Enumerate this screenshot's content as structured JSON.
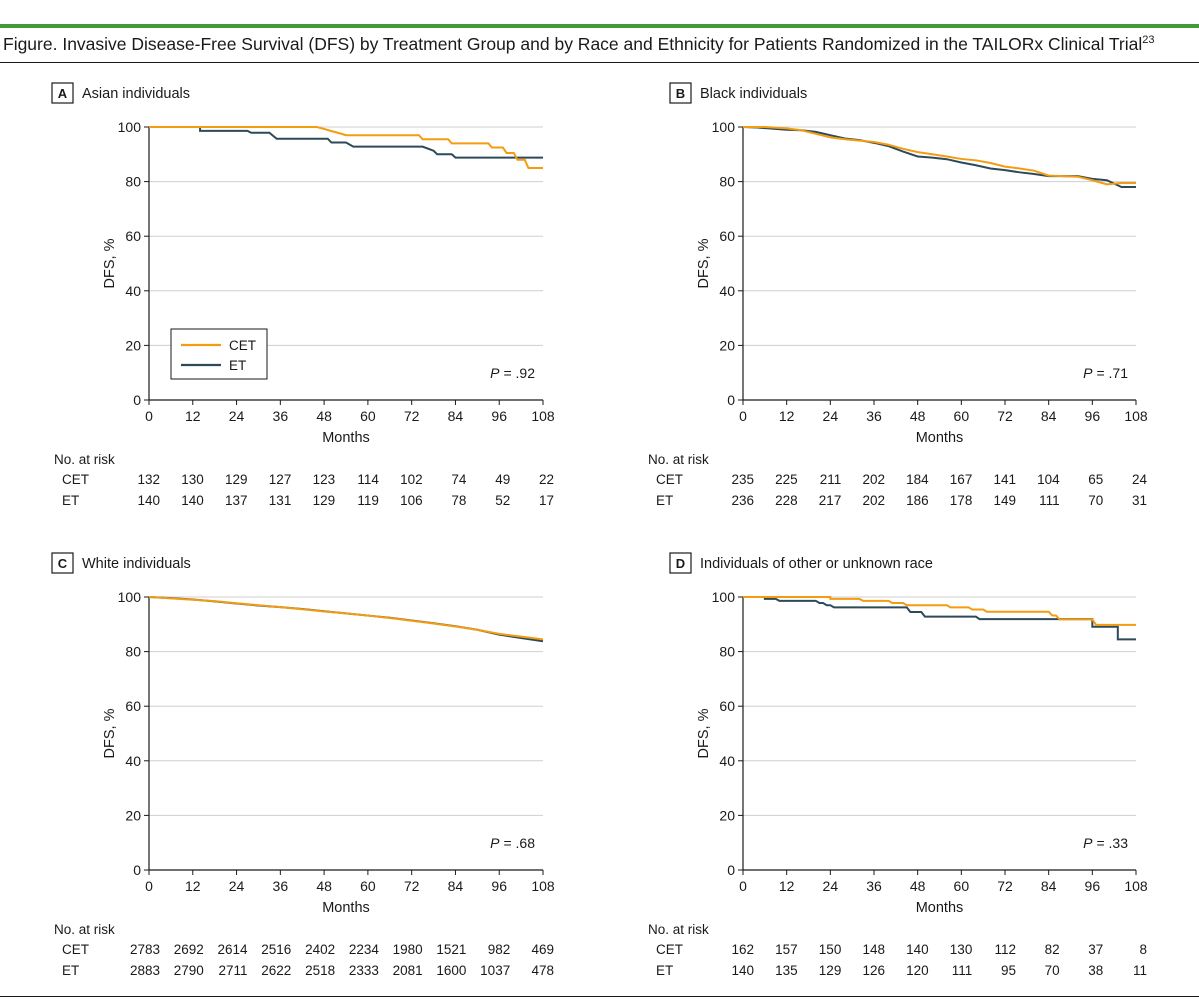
{
  "figure_title": "Figure. Invasive Disease-Free Survival (DFS) by Treatment Group and by Race and Ethnicity for Patients Randomized in the TAILORx Clinical Trial",
  "figure_ref": "23",
  "colors": {
    "CET": "#f39c12",
    "ET": "#2c4a5a",
    "grid": "#cfcfcf",
    "accent": "#3f9b35"
  },
  "legend": [
    "CET",
    "ET"
  ],
  "chart_data": [
    {
      "panel": "A",
      "type": "line",
      "title": "Asian individuals",
      "xlabel": "Months",
      "ylabel": "DFS, %",
      "xlim": [
        0,
        108
      ],
      "ylim": [
        0,
        100
      ],
      "xticks": [
        0,
        12,
        24,
        36,
        48,
        60,
        72,
        84,
        96,
        108
      ],
      "yticks": [
        0,
        20,
        40,
        60,
        80,
        100
      ],
      "p_label": "P",
      "p_value": "= .92",
      "legend_location": "lower-left",
      "legend": [
        "CET",
        "ET"
      ],
      "series": [
        {
          "name": "CET",
          "points": [
            [
              0,
              100
            ],
            [
              46,
              100
            ],
            [
              48,
              99.3
            ],
            [
              50,
              98.5
            ],
            [
              52,
              97.8
            ],
            [
              54,
              97
            ],
            [
              74,
              97
            ],
            [
              75,
              95.5
            ],
            [
              82,
              95.5
            ],
            [
              83,
              94
            ],
            [
              93,
              94
            ],
            [
              94,
              92.5
            ],
            [
              97,
              92.5
            ],
            [
              98,
              90.5
            ],
            [
              100,
              90.5
            ],
            [
              101,
              88
            ],
            [
              103,
              88
            ],
            [
              104,
              85
            ],
            [
              108,
              85
            ]
          ]
        },
        {
          "name": "ET",
          "points": [
            [
              0,
              100
            ],
            [
              14,
              100
            ],
            [
              14,
              98.6
            ],
            [
              27,
              98.6
            ],
            [
              28,
              97.9
            ],
            [
              33,
              97.9
            ],
            [
              35,
              95.7
            ],
            [
              49,
              95.7
            ],
            [
              50,
              94.3
            ],
            [
              54,
              94.3
            ],
            [
              56,
              92.8
            ],
            [
              75,
              92.8
            ],
            [
              78,
              91.3
            ],
            [
              79,
              90
            ],
            [
              83,
              90
            ],
            [
              84,
              88.8
            ],
            [
              108,
              88.8
            ]
          ]
        }
      ],
      "at_risk": {
        "header": "No. at risk",
        "rows": [
          {
            "label": "CET",
            "values": [
              "132",
              "130",
              "129",
              "127",
              "123",
              "114",
              "102",
              "74",
              "49",
              "22"
            ]
          },
          {
            "label": "ET",
            "values": [
              "140",
              "140",
              "137",
              "131",
              "129",
              "119",
              "106",
              "78",
              "52",
              "17"
            ]
          }
        ]
      }
    },
    {
      "panel": "B",
      "type": "line",
      "title": "Black individuals",
      "xlabel": "Months",
      "ylabel": "DFS, %",
      "xlim": [
        0,
        108
      ],
      "ylim": [
        0,
        100
      ],
      "xticks": [
        0,
        12,
        24,
        36,
        48,
        60,
        72,
        84,
        96,
        108
      ],
      "yticks": [
        0,
        20,
        40,
        60,
        80,
        100
      ],
      "p_label": "P",
      "p_value": "= .71",
      "series": [
        {
          "name": "CET",
          "points": [
            [
              0,
              100
            ],
            [
              6,
              100
            ],
            [
              12,
              99.5
            ],
            [
              16,
              98.8
            ],
            [
              20,
              97.5
            ],
            [
              24,
              96.2
            ],
            [
              28,
              95.5
            ],
            [
              32,
              95
            ],
            [
              36,
              94.5
            ],
            [
              40,
              93.5
            ],
            [
              44,
              92
            ],
            [
              48,
              90.8
            ],
            [
              52,
              90
            ],
            [
              56,
              89.2
            ],
            [
              60,
              88.3
            ],
            [
              64,
              87.8
            ],
            [
              68,
              86.8
            ],
            [
              72,
              85.5
            ],
            [
              76,
              84.8
            ],
            [
              80,
              84
            ],
            [
              84,
              82.2
            ],
            [
              88,
              82
            ],
            [
              92,
              81.8
            ],
            [
              96,
              80.5
            ],
            [
              100,
              79
            ],
            [
              104,
              79.5
            ],
            [
              108,
              79.5
            ]
          ]
        },
        {
          "name": "ET",
          "points": [
            [
              0,
              100
            ],
            [
              4,
              99.8
            ],
            [
              8,
              99.4
            ],
            [
              12,
              99
            ],
            [
              16,
              98.8
            ],
            [
              20,
              98.2
            ],
            [
              24,
              97
            ],
            [
              28,
              95.8
            ],
            [
              32,
              95.2
            ],
            [
              36,
              94.2
            ],
            [
              40,
              93
            ],
            [
              44,
              91
            ],
            [
              48,
              89.2
            ],
            [
              52,
              88.8
            ],
            [
              56,
              88.2
            ],
            [
              60,
              87
            ],
            [
              64,
              86
            ],
            [
              68,
              84.8
            ],
            [
              72,
              84.2
            ],
            [
              76,
              83.4
            ],
            [
              80,
              82.8
            ],
            [
              84,
              82
            ],
            [
              88,
              82
            ],
            [
              92,
              82
            ],
            [
              96,
              81
            ],
            [
              100,
              80.5
            ],
            [
              104,
              78
            ],
            [
              108,
              78
            ]
          ]
        }
      ],
      "at_risk": {
        "header": "No. at risk",
        "rows": [
          {
            "label": "CET",
            "values": [
              "235",
              "225",
              "211",
              "202",
              "184",
              "167",
              "141",
              "104",
              "65",
              "24"
            ]
          },
          {
            "label": "ET",
            "values": [
              "236",
              "228",
              "217",
              "202",
              "186",
              "178",
              "149",
              "111",
              "70",
              "31"
            ]
          }
        ]
      }
    },
    {
      "panel": "C",
      "type": "line",
      "title": "White individuals",
      "xlabel": "Months",
      "ylabel": "DFS, %",
      "xlim": [
        0,
        108
      ],
      "ylim": [
        0,
        100
      ],
      "xticks": [
        0,
        12,
        24,
        36,
        48,
        60,
        72,
        84,
        96,
        108
      ],
      "yticks": [
        0,
        20,
        40,
        60,
        80,
        100
      ],
      "p_label": "P",
      "p_value": "= .68",
      "series": [
        {
          "name": "CET",
          "points": [
            [
              0,
              100
            ],
            [
              6,
              99.5
            ],
            [
              12,
              99
            ],
            [
              18,
              98.5
            ],
            [
              24,
              97.7
            ],
            [
              30,
              97
            ],
            [
              36,
              96.3
            ],
            [
              42,
              95.5
            ],
            [
              48,
              94.7
            ],
            [
              54,
              94
            ],
            [
              60,
              93.2
            ],
            [
              66,
              92.3
            ],
            [
              72,
              91.3
            ],
            [
              78,
              90.3
            ],
            [
              84,
              89.2
            ],
            [
              90,
              88
            ],
            [
              96,
              86.5
            ],
            [
              102,
              85.5
            ],
            [
              108,
              84.5
            ]
          ]
        },
        {
          "name": "ET",
          "points": [
            [
              0,
              100
            ],
            [
              6,
              99.6
            ],
            [
              12,
              99.1
            ],
            [
              18,
              98.4
            ],
            [
              24,
              97.6
            ],
            [
              30,
              96.9
            ],
            [
              36,
              96.3
            ],
            [
              42,
              95.6
            ],
            [
              48,
              94.8
            ],
            [
              54,
              94
            ],
            [
              60,
              93.2
            ],
            [
              66,
              92.4
            ],
            [
              72,
              91.4
            ],
            [
              78,
              90.4
            ],
            [
              84,
              89.3
            ],
            [
              90,
              88
            ],
            [
              96,
              86.2
            ],
            [
              102,
              85
            ],
            [
              108,
              83.8
            ]
          ]
        }
      ],
      "at_risk": {
        "header": "No. at risk",
        "rows": [
          {
            "label": "CET",
            "values": [
              "2783",
              "2692",
              "2614",
              "2516",
              "2402",
              "2234",
              "1980",
              "1521",
              "982",
              "469"
            ]
          },
          {
            "label": "ET",
            "values": [
              "2883",
              "2790",
              "2711",
              "2622",
              "2518",
              "2333",
              "2081",
              "1600",
              "1037",
              "478"
            ]
          }
        ]
      }
    },
    {
      "panel": "D",
      "type": "line",
      "title": "Individuals of other or unknown race",
      "xlabel": "Months",
      "ylabel": "DFS, %",
      "xlim": [
        0,
        108
      ],
      "ylim": [
        0,
        100
      ],
      "xticks": [
        0,
        12,
        24,
        36,
        48,
        60,
        72,
        84,
        96,
        108
      ],
      "yticks": [
        0,
        20,
        40,
        60,
        80,
        100
      ],
      "p_label": "P",
      "p_value": "= .33",
      "series": [
        {
          "name": "CET",
          "points": [
            [
              0,
              100
            ],
            [
              24,
              100
            ],
            [
              24,
              99.3
            ],
            [
              32,
              99.3
            ],
            [
              33,
              98.6
            ],
            [
              40,
              98.6
            ],
            [
              41,
              97.8
            ],
            [
              44,
              97.8
            ],
            [
              45,
              97
            ],
            [
              56,
              97
            ],
            [
              57,
              96.2
            ],
            [
              62,
              96.2
            ],
            [
              63,
              95.4
            ],
            [
              66,
              95.4
            ],
            [
              67,
              94.6
            ],
            [
              84,
              94.6
            ],
            [
              85,
              93.2
            ],
            [
              86,
              93.2
            ],
            [
              87,
              91.8
            ],
            [
              96,
              91.8
            ],
            [
              97,
              89.8
            ],
            [
              108,
              89.8
            ]
          ]
        },
        {
          "name": "ET",
          "points": [
            [
              0,
              100
            ],
            [
              6,
              100
            ],
            [
              6,
              99.3
            ],
            [
              9,
              99.3
            ],
            [
              10,
              98.6
            ],
            [
              20,
              98.6
            ],
            [
              21,
              97.8
            ],
            [
              22,
              97.8
            ],
            [
              23,
              97
            ],
            [
              24,
              97
            ],
            [
              25,
              96.2
            ],
            [
              45,
              96.2
            ],
            [
              46,
              94.5
            ],
            [
              49,
              94.5
            ],
            [
              50,
              92.8
            ],
            [
              64,
              92.8
            ],
            [
              65,
              91.9
            ],
            [
              96,
              91.9
            ],
            [
              96,
              89.1
            ],
            [
              103,
              89.1
            ],
            [
              103,
              84.5
            ],
            [
              108,
              84.5
            ]
          ]
        }
      ],
      "at_risk": {
        "header": "No. at risk",
        "rows": [
          {
            "label": "CET",
            "values": [
              "162",
              "157",
              "150",
              "148",
              "140",
              "130",
              "112",
              "82",
              "37",
              "8"
            ]
          },
          {
            "label": "ET",
            "values": [
              "140",
              "135",
              "129",
              "126",
              "120",
              "111",
              "95",
              "70",
              "38",
              "11"
            ]
          }
        ]
      }
    }
  ]
}
